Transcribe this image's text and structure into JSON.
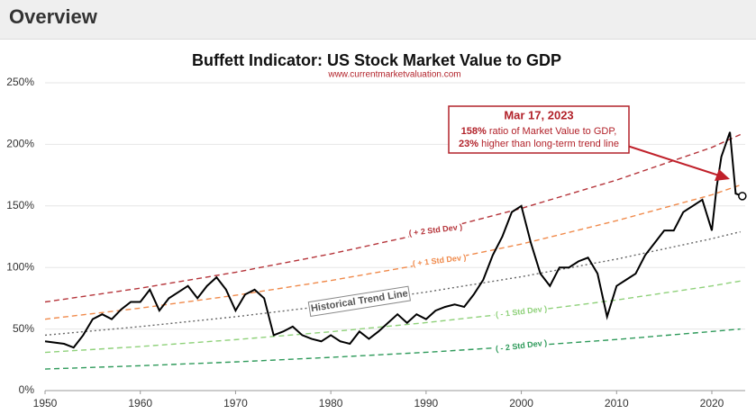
{
  "header": {
    "title": "Overview"
  },
  "chart_data": {
    "type": "line",
    "title": "Buffett Indicator: US Stock Market Value to GDP",
    "subtitle": "www.currentmarketvaluation.com",
    "xlim": [
      1950,
      2023.5
    ],
    "xticks": [
      1950,
      1960,
      1970,
      1980,
      1990,
      2000,
      2010,
      2020
    ],
    "ylim": [
      0,
      250
    ],
    "yticks": [
      {
        "value": 0,
        "label": "0%"
      },
      {
        "value": 50,
        "label": "50%"
      },
      {
        "value": 100,
        "label": "100%"
      },
      {
        "value": 150,
        "label": "150%"
      },
      {
        "value": 200,
        "label": "200%"
      },
      {
        "value": 250,
        "label": "250%"
      }
    ],
    "grid": true,
    "series": [
      {
        "name": "( + 2 Std Dev )",
        "color": "#b5343a",
        "style": "dashed",
        "x": [
          1950,
          1960,
          1970,
          1980,
          1990,
          2000,
          2010,
          2020,
          2023
        ],
        "values": [
          72,
          83.2,
          96.1,
          111,
          128,
          148,
          171,
          197.5,
          208
        ]
      },
      {
        "name": "( + 1 Std Dev )",
        "color": "#f08a4b",
        "style": "dashed",
        "x": [
          1950,
          1960,
          1970,
          1980,
          1990,
          2000,
          2010,
          2020,
          2023
        ],
        "values": [
          58,
          67,
          77.4,
          89.4,
          103,
          119,
          138,
          159,
          167
        ]
      },
      {
        "name": "Historical Trend Line",
        "color": "#666666",
        "style": "dotted",
        "x": [
          1950,
          1960,
          1970,
          1980,
          1990,
          2000,
          2010,
          2020,
          2023
        ],
        "values": [
          45,
          52,
          60,
          69.3,
          80,
          92.5,
          106.8,
          123.4,
          129
        ]
      },
      {
        "name": "( - 1 Std Dev )",
        "color": "#8fd17a",
        "style": "dashed",
        "x": [
          1950,
          1960,
          1970,
          1980,
          1990,
          2000,
          2010,
          2020,
          2023
        ],
        "values": [
          31,
          35.8,
          41.4,
          47.8,
          55.2,
          63.7,
          73.6,
          85,
          89
        ]
      },
      {
        "name": "( - 2 Std Dev )",
        "color": "#2e9a5a",
        "style": "dashed",
        "x": [
          1950,
          1960,
          1970,
          1980,
          1990,
          2000,
          2010,
          2020,
          2023
        ],
        "values": [
          17.5,
          20.2,
          23.3,
          27,
          31.1,
          36,
          41.5,
          48,
          50
        ]
      },
      {
        "color": "#000000",
        "style": "solid",
        "x": [
          1950,
          1952,
          1953,
          1954,
          1955,
          1956,
          1957,
          1958,
          1959,
          1960,
          1961,
          1962,
          1963,
          1964,
          1965,
          1966,
          1967,
          1968,
          1969,
          1970,
          1971,
          1972,
          1973,
          1974,
          1975,
          1976,
          1977,
          1978,
          1979,
          1980,
          1981,
          1982,
          1983,
          1984,
          1985,
          1986,
          1987,
          1988,
          1989,
          1990,
          1991,
          1992,
          1993,
          1994,
          1995,
          1996,
          1997,
          1998,
          1999,
          2000,
          2001,
          2002,
          2003,
          2004,
          2005,
          2006,
          2007,
          2008,
          2009,
          2010,
          2011,
          2012,
          2013,
          2014,
          2015,
          2016,
          2017,
          2018,
          2019,
          2020,
          2020.5,
          2021,
          2021.9,
          2022.5,
          2023.2
        ],
        "values": [
          40,
          38,
          35,
          45,
          58,
          62,
          58,
          66,
          72,
          72,
          82,
          65,
          75,
          80,
          85,
          75,
          85,
          92,
          82,
          65,
          78,
          82,
          75,
          45,
          48,
          52,
          45,
          42,
          40,
          45,
          40,
          38,
          48,
          42,
          48,
          55,
          62,
          55,
          62,
          58,
          65,
          68,
          70,
          68,
          78,
          90,
          110,
          125,
          145,
          150,
          120,
          95,
          85,
          100,
          100,
          105,
          108,
          95,
          60,
          85,
          90,
          95,
          110,
          120,
          130,
          130,
          145,
          150,
          155,
          130,
          165,
          190,
          210,
          160,
          158
        ]
      }
    ],
    "annotation": {
      "date": "Mar 17, 2023",
      "lines": [
        {
          "bold": "158%",
          "text": " ratio of Market Value to GDP,"
        },
        {
          "bold": "23%",
          "text": " higher than long-term trend line"
        }
      ]
    }
  }
}
